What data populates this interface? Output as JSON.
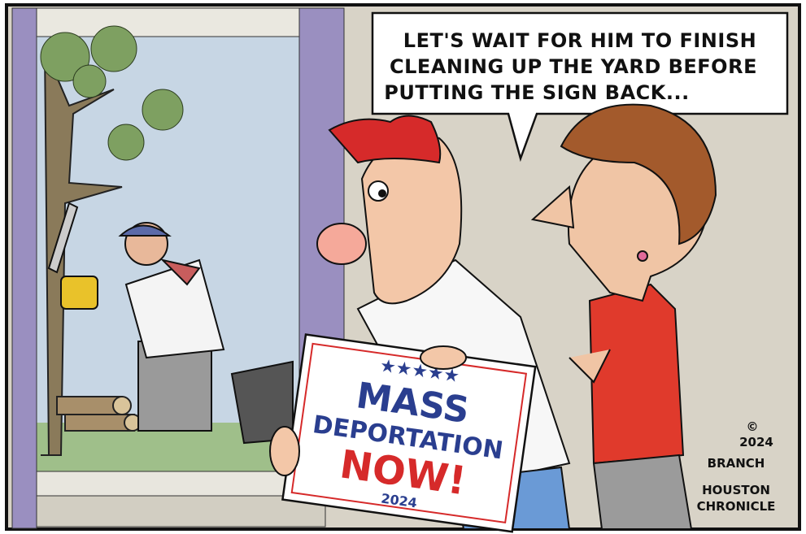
{
  "speech_bubble": {
    "lines": [
      "LET'S WAIT FOR HIM TO FINISH",
      "CLEANING UP THE YARD BEFORE",
      "PUTTING THE SIGN BACK..."
    ]
  },
  "sign": {
    "line1": "MASS",
    "line2": "DEPORTATION",
    "line3": "NOW!",
    "year": "2024"
  },
  "signature": {
    "copyright": "©",
    "year": "2024",
    "artist": "BRANCH",
    "publisher_lines": [
      "HOUSTON",
      "CHRONICLE"
    ]
  }
}
